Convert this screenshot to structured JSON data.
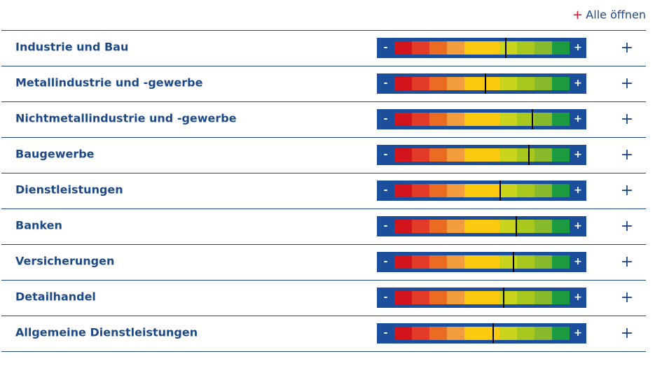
{
  "expand_all": {
    "icon": "+",
    "label": "Alle öffnen"
  },
  "gauge": {
    "minus": "-",
    "plus": "+",
    "range": [
      0,
      100
    ],
    "segments": [
      {
        "color": "#d3141c",
        "width": 1
      },
      {
        "color": "#e43a28",
        "width": 1
      },
      {
        "color": "#ec6b22",
        "width": 1
      },
      {
        "color": "#f39c3d",
        "width": 1
      },
      {
        "color": "#fbc90d",
        "width": 2
      },
      {
        "color": "#cad41d",
        "width": 1
      },
      {
        "color": "#a9c81d",
        "width": 1
      },
      {
        "color": "#88b82b",
        "width": 1
      },
      {
        "color": "#1b9a3f",
        "width": 1
      }
    ]
  },
  "rows": [
    {
      "label": "Industrie und Bau",
      "value": 63.6,
      "toggle": "+"
    },
    {
      "label": "Metallindustrie und -gewerbe",
      "value": 52,
      "toggle": "+"
    },
    {
      "label": "Nichtmetallindustrie und -gewerbe",
      "value": 78.8,
      "toggle": "+"
    },
    {
      "label": "Baugewerbe",
      "value": 76.8,
      "toggle": "+"
    },
    {
      "label": "Dienstleistungen",
      "value": 60.4,
      "toggle": "+"
    },
    {
      "label": "Banken",
      "value": 69.6,
      "toggle": "+"
    },
    {
      "label": "Versicherungen",
      "value": 68,
      "toggle": "+"
    },
    {
      "label": "Detailhandel",
      "value": 62.4,
      "toggle": "+"
    },
    {
      "label": "Allgemeine Dienstleistungen",
      "value": 56.4,
      "toggle": "+"
    }
  ]
}
